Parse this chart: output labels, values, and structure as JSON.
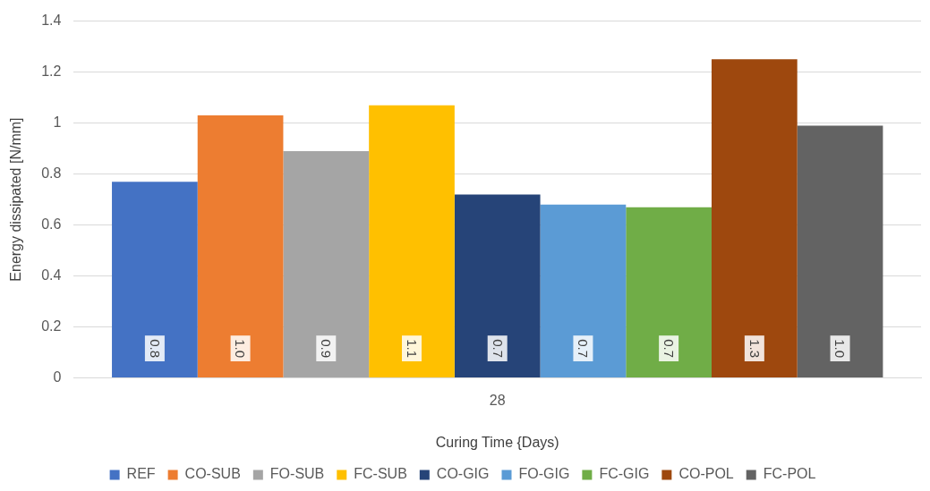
{
  "chart_data": {
    "type": "bar",
    "xlabel": "Curing Time {Days)",
    "ylabel": "Energy dissipated [N/mm]",
    "categories": [
      "28"
    ],
    "ylim": [
      0,
      1.4
    ],
    "yticks": [
      0,
      0.2,
      0.4,
      0.6,
      0.8,
      1,
      1.2,
      1.4
    ],
    "grid": "y",
    "legend": "bottom",
    "series": [
      {
        "name": "REF",
        "color": "#4472c4",
        "values": [
          0.77
        ],
        "value_labels": [
          "0.8"
        ]
      },
      {
        "name": "CO-SUB",
        "color": "#ed7d31",
        "values": [
          1.03
        ],
        "value_labels": [
          "1.0"
        ]
      },
      {
        "name": "FO-SUB",
        "color": "#a5a5a5",
        "values": [
          0.89
        ],
        "value_labels": [
          "0.9"
        ]
      },
      {
        "name": "FC-SUB",
        "color": "#ffc000",
        "values": [
          1.07
        ],
        "value_labels": [
          "1.1"
        ]
      },
      {
        "name": "CO-GIG",
        "color": "#264478",
        "values": [
          0.72
        ],
        "value_labels": [
          "0.7"
        ]
      },
      {
        "name": "FO-GIG",
        "color": "#5b9bd5",
        "values": [
          0.68
        ],
        "value_labels": [
          "0.7"
        ]
      },
      {
        "name": "FC-GIG",
        "color": "#70ad47",
        "values": [
          0.67
        ],
        "value_labels": [
          "0.7"
        ]
      },
      {
        "name": "CO-POL",
        "color": "#9e480e",
        "values": [
          1.25
        ],
        "value_labels": [
          "1.3"
        ]
      },
      {
        "name": "FC-POL",
        "color": "#636363",
        "values": [
          0.99
        ],
        "value_labels": [
          "1.0"
        ]
      }
    ]
  }
}
